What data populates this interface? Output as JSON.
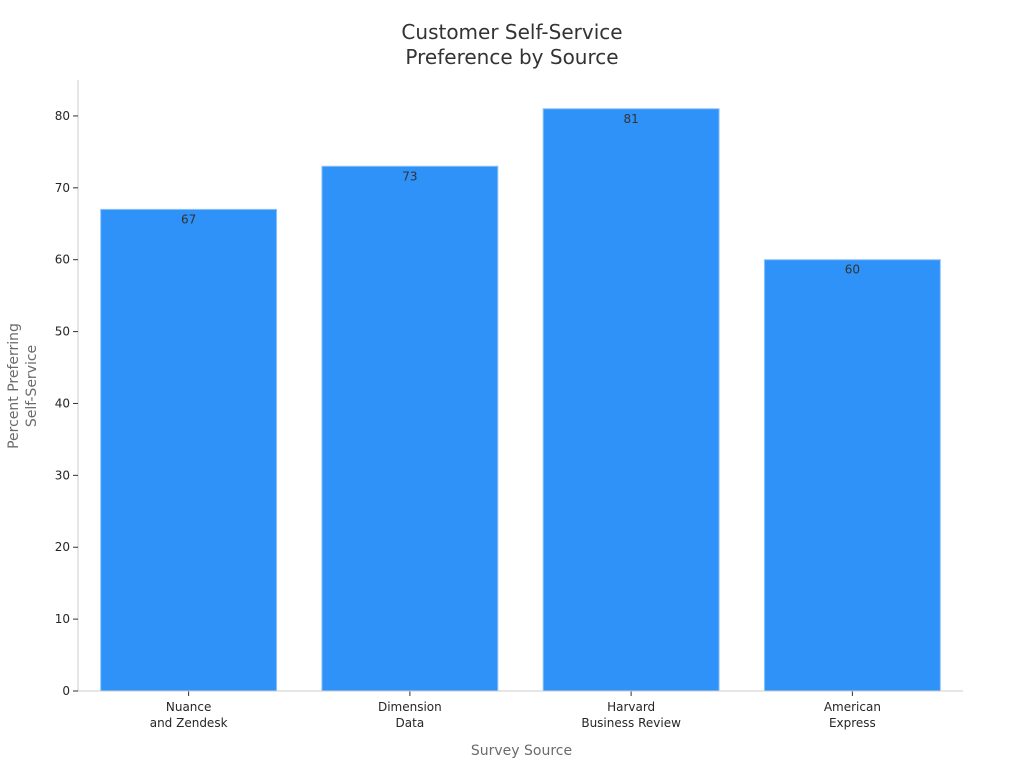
{
  "chart_data": {
    "type": "bar",
    "title_lines": [
      "Customer Self-Service",
      "Preference by Source"
    ],
    "categories": [
      [
        "Nuance",
        "and Zendesk"
      ],
      [
        "Dimension",
        "Data"
      ],
      [
        "Harvard",
        "Business Review"
      ],
      [
        "American",
        "Express"
      ]
    ],
    "values": [
      67,
      73,
      81,
      60
    ],
    "xlabel": "Survey Source",
    "ylabel_lines": [
      "Percent Preferring",
      "Self-Service"
    ],
    "ylim": [
      0,
      85
    ],
    "yticks": [
      0,
      10,
      20,
      30,
      40,
      50,
      60,
      70,
      80
    ],
    "grid": false,
    "bar_color": "#2E92F8",
    "bar_edge_color": "#8EC3F7",
    "axis_color": "#CCCCCC"
  }
}
